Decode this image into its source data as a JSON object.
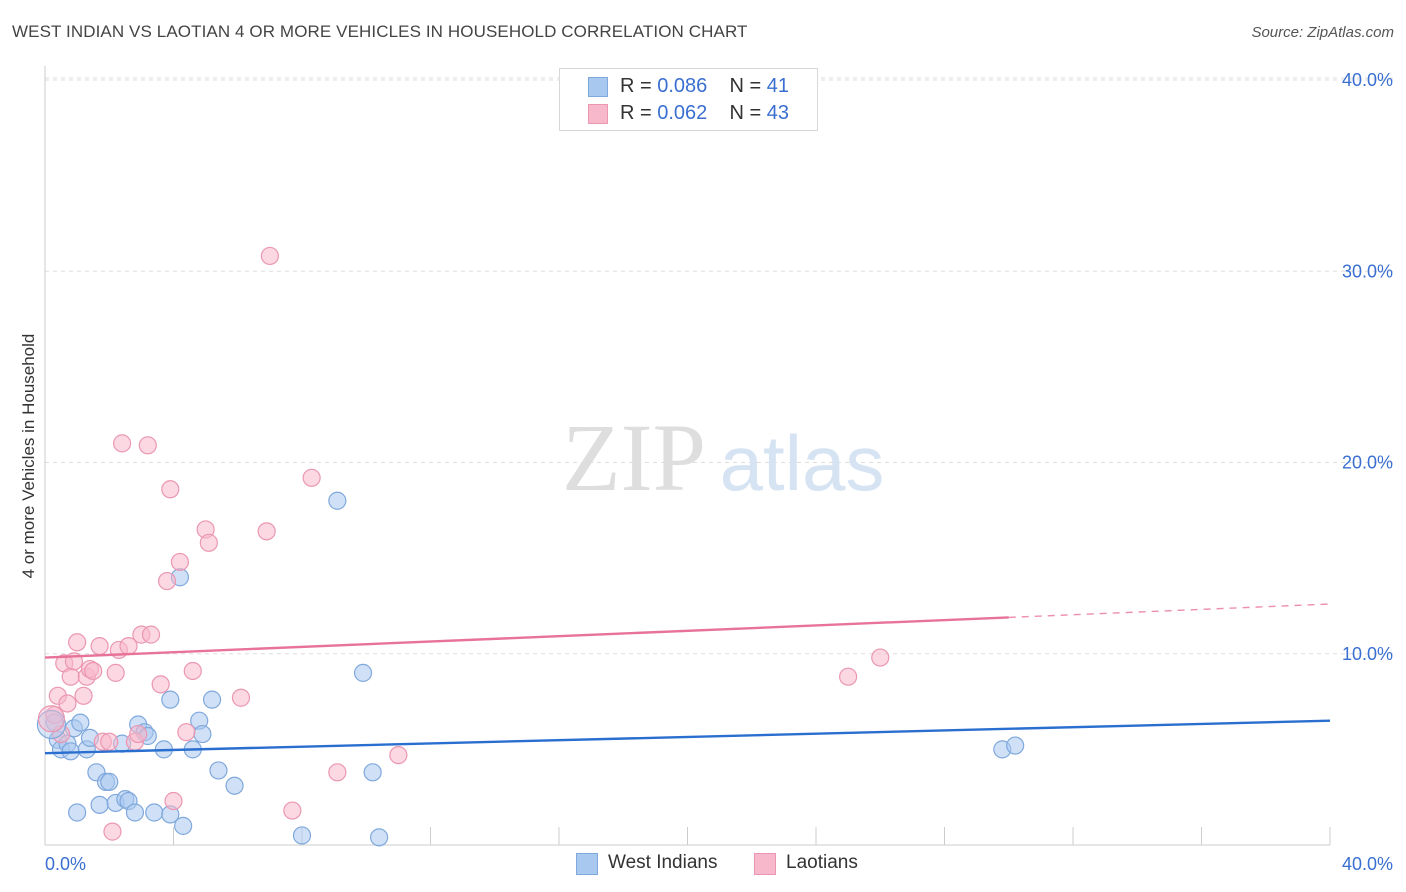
{
  "title": "WEST INDIAN VS LAOTIAN 4 OR MORE VEHICLES IN HOUSEHOLD CORRELATION CHART",
  "source": "Source: ZipAtlas.com",
  "watermark": {
    "zip": "ZIP",
    "atlas": "atlas"
  },
  "colors": {
    "blue_fill": "#a9c8f0",
    "blue_stroke": "#7fa8dc",
    "blue_line": "#2a6fcf",
    "pink_fill": "#f7b8cb",
    "pink_stroke": "#eb97b2",
    "pink_line": "#e8739a",
    "tick_label": "#3a6fd1",
    "grid": "#dddddd"
  },
  "legend_top": {
    "rows": [
      {
        "r_label": "R = ",
        "r_value": "0.086",
        "n_label": "N = ",
        "n_value": "41"
      },
      {
        "r_label": "R = ",
        "r_value": "0.062",
        "n_label": "N = ",
        "n_value": "43"
      }
    ]
  },
  "legend_bottom": [
    "West Indians",
    "Laotians"
  ],
  "chart_data": {
    "type": "scatter",
    "title": "WEST INDIAN VS LAOTIAN 4 OR MORE VEHICLES IN HOUSEHOLD CORRELATION CHART",
    "xlabel": "",
    "ylabel": "4 or more Vehicles in Household",
    "xlim": [
      0,
      40
    ],
    "ylim": [
      0,
      40
    ],
    "x_tick_labels": [
      "0.0%",
      "40.0%"
    ],
    "y_ticks": [
      10,
      20,
      30,
      40
    ],
    "y_tick_labels": [
      "10.0%",
      "20.0%",
      "30.0%",
      "40.0%"
    ],
    "grid": true,
    "series": [
      {
        "name": "West Indians",
        "R": 0.086,
        "N": 41,
        "trend": {
          "x": [
            0,
            40
          ],
          "y": [
            4.8,
            6.5
          ],
          "dashed_from": null
        },
        "points": [
          [
            0.3,
            6.4
          ],
          [
            0.4,
            5.5
          ],
          [
            0.5,
            5.0
          ],
          [
            0.7,
            5.3
          ],
          [
            0.8,
            4.9
          ],
          [
            0.9,
            6.1
          ],
          [
            1.0,
            1.7
          ],
          [
            1.1,
            6.4
          ],
          [
            1.3,
            5.0
          ],
          [
            1.4,
            5.6
          ],
          [
            1.6,
            3.8
          ],
          [
            1.7,
            2.1
          ],
          [
            1.9,
            3.3
          ],
          [
            2.0,
            3.3
          ],
          [
            2.2,
            2.2
          ],
          [
            2.4,
            5.3
          ],
          [
            2.5,
            2.4
          ],
          [
            2.6,
            2.3
          ],
          [
            2.8,
            1.7
          ],
          [
            2.9,
            6.3
          ],
          [
            3.1,
            5.9
          ],
          [
            3.2,
            5.7
          ],
          [
            3.4,
            1.7
          ],
          [
            3.7,
            5.0
          ],
          [
            3.9,
            7.6
          ],
          [
            3.9,
            1.6
          ],
          [
            4.2,
            14.0
          ],
          [
            4.3,
            1.0
          ],
          [
            4.6,
            5.0
          ],
          [
            4.8,
            6.5
          ],
          [
            4.9,
            5.8
          ],
          [
            5.2,
            7.6
          ],
          [
            5.4,
            3.9
          ],
          [
            5.9,
            3.1
          ],
          [
            8.0,
            0.5
          ],
          [
            9.1,
            18.0
          ],
          [
            9.9,
            9.0
          ],
          [
            10.2,
            3.8
          ],
          [
            10.4,
            0.4
          ],
          [
            29.8,
            5.0
          ],
          [
            30.2,
            5.2
          ]
        ]
      },
      {
        "name": "Laotians",
        "R": 0.062,
        "N": 43,
        "trend": {
          "x": [
            0,
            40
          ],
          "y": [
            9.8,
            12.6
          ],
          "dashed_from": 30.0
        },
        "points": [
          [
            0.3,
            6.8
          ],
          [
            0.4,
            7.8
          ],
          [
            0.5,
            5.8
          ],
          [
            0.6,
            9.5
          ],
          [
            0.7,
            7.4
          ],
          [
            0.8,
            8.8
          ],
          [
            0.9,
            9.6
          ],
          [
            1.0,
            10.6
          ],
          [
            1.2,
            7.8
          ],
          [
            1.3,
            8.8
          ],
          [
            1.4,
            9.2
          ],
          [
            1.5,
            9.1
          ],
          [
            1.7,
            10.4
          ],
          [
            1.8,
            5.4
          ],
          [
            2.0,
            5.4
          ],
          [
            2.1,
            0.7
          ],
          [
            2.2,
            9.0
          ],
          [
            2.3,
            10.2
          ],
          [
            2.4,
            21.0
          ],
          [
            2.6,
            10.4
          ],
          [
            2.8,
            5.4
          ],
          [
            2.9,
            5.8
          ],
          [
            3.0,
            11.0
          ],
          [
            3.2,
            20.9
          ],
          [
            3.3,
            11.0
          ],
          [
            3.6,
            8.4
          ],
          [
            3.8,
            13.8
          ],
          [
            3.9,
            18.6
          ],
          [
            4.0,
            2.3
          ],
          [
            4.2,
            14.8
          ],
          [
            4.4,
            5.9
          ],
          [
            4.6,
            9.1
          ],
          [
            5.0,
            16.5
          ],
          [
            5.1,
            15.8
          ],
          [
            6.1,
            7.7
          ],
          [
            6.9,
            16.4
          ],
          [
            7.0,
            30.8
          ],
          [
            7.7,
            1.8
          ],
          [
            8.3,
            19.2
          ],
          [
            9.1,
            3.8
          ],
          [
            11.0,
            4.7
          ],
          [
            25.0,
            8.8
          ],
          [
            26.0,
            9.8
          ]
        ]
      }
    ]
  }
}
